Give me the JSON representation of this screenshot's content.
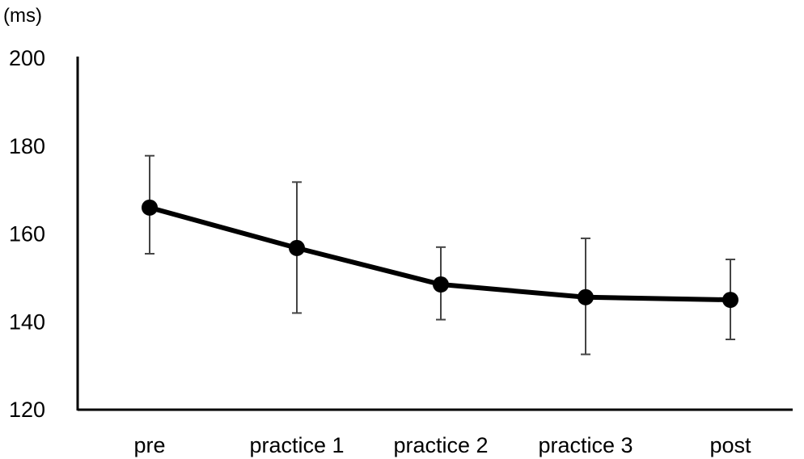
{
  "chart_data": {
    "type": "line",
    "title": "",
    "xlabel": "",
    "ylabel": "(ms)",
    "categories": [
      "pre",
      "practice 1",
      "practice 2",
      "practice 3",
      "post"
    ],
    "series": [
      {
        "values": [
          166,
          156.8,
          148.5,
          145.6,
          145
        ],
        "error_upper": [
          177.8,
          171.8,
          157,
          159,
          154.2
        ],
        "error_lower": [
          155.5,
          142,
          140.5,
          132.6,
          136
        ],
        "color": "#000000"
      }
    ],
    "ylim": [
      120,
      200
    ],
    "yticks": [
      120,
      140,
      160,
      180,
      200
    ],
    "grid": false,
    "legend": "none"
  }
}
